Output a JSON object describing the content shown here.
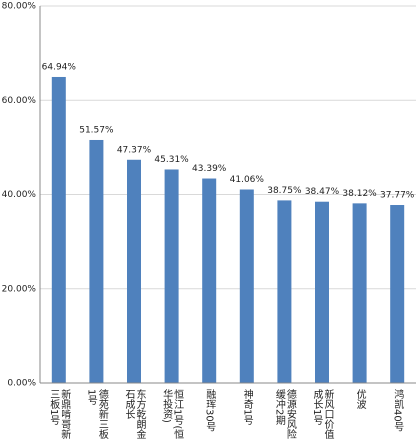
{
  "chart_data": {
    "type": "bar",
    "categories": [
      "新鼎啃哥新三板1号",
      "德苑新三板1号",
      "东方乾朗金石成长",
      "恒江1号(恒华投资)",
      "融珲30号",
      "神奇1号",
      "德源安风险缓冲2期",
      "新风口价值成长1号",
      "优波",
      "鸿凯40号"
    ],
    "values": [
      64.94,
      51.57,
      47.37,
      45.31,
      43.39,
      41.06,
      38.75,
      38.47,
      38.12,
      37.77
    ],
    "value_labels": [
      "64.94%",
      "51.57%",
      "47.37%",
      "45.31%",
      "43.39%",
      "41.06%",
      "38.75%",
      "38.47%",
      "38.12%",
      "37.77%"
    ],
    "color": "#4f81bd",
    "ylim": [
      0,
      80
    ],
    "yticks": [
      {
        "value": 0,
        "label": "0.00%"
      },
      {
        "value": 20,
        "label": "20.00%"
      },
      {
        "value": 40,
        "label": "40.00%"
      },
      {
        "value": 60,
        "label": "60.00%"
      },
      {
        "value": 80,
        "label": "80.00%"
      }
    ],
    "grid": true
  }
}
